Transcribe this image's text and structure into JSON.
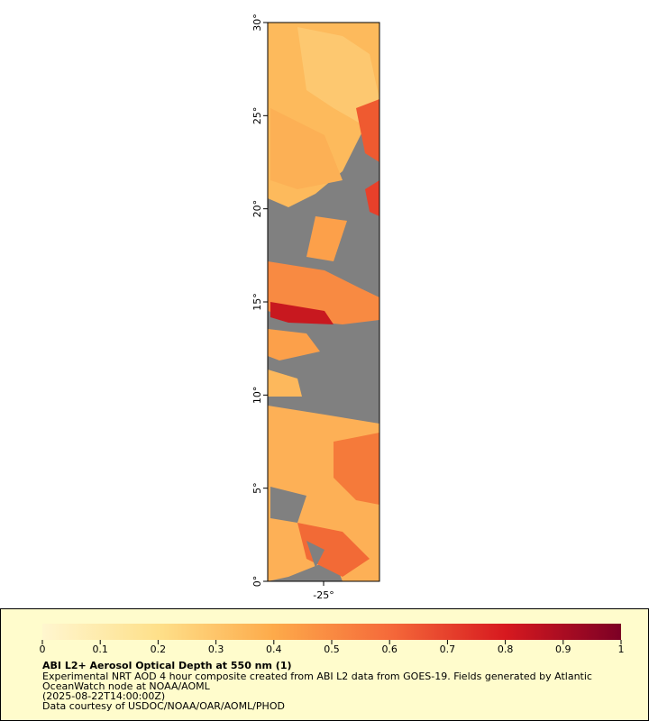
{
  "map": {
    "xlim": [
      -28,
      -22
    ],
    "ylim": [
      0,
      30
    ],
    "yticks": [
      {
        "value": 0,
        "label": "0°"
      },
      {
        "value": 5,
        "label": "5°"
      },
      {
        "value": 10,
        "label": "10°"
      },
      {
        "value": 15,
        "label": "15°"
      },
      {
        "value": 20,
        "label": "20°"
      },
      {
        "value": 25,
        "label": "25°"
      },
      {
        "value": 30,
        "label": "30°"
      }
    ],
    "xticks": [
      {
        "value": -25,
        "label": "-25°"
      }
    ]
  },
  "colorbar": {
    "lim": [
      0,
      1
    ],
    "ticks": [
      0,
      0.1,
      0.2,
      0.3,
      0.4,
      0.5,
      0.6,
      0.7,
      0.8,
      0.9,
      1
    ]
  },
  "legend": {
    "title": "ABI L2+ Aerosol Optical Depth at 550 nm (1)",
    "lines": [
      "Experimental NRT AOD 4 hour composite created from ABI L2 data from GOES-19. Fields generated by Atlantic",
      "OceanWatch node at NOAA/AOML",
      "(2025-08-22T14:00:00Z)",
      "Data courtesy of USDOC/NOAA/OAR/AOML/PHOD"
    ]
  }
}
